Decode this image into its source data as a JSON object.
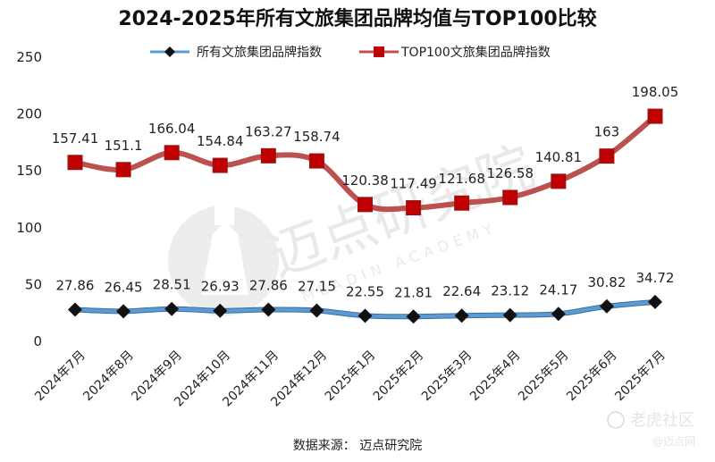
{
  "chart_data": {
    "type": "line",
    "title": "2024-2025年所有文旅集团品牌均值与TOP100比较",
    "categories": [
      "2024年7月",
      "2024年8月",
      "2024年9月",
      "2024年10月",
      "2024年11月",
      "2024年12月",
      "2025年1月",
      "2025年2月",
      "2025年3月",
      "2025年4月",
      "2025年5月",
      "2025年6月",
      "2025年7月"
    ],
    "series": [
      {
        "name": "所有文旅集团品牌指数",
        "color": "#5b9bd5",
        "marker": "diamond",
        "values": [
          27.86,
          26.45,
          28.51,
          26.93,
          27.86,
          27.15,
          22.55,
          21.81,
          22.64,
          23.12,
          24.17,
          30.82,
          34.72
        ],
        "labels": [
          "27.86",
          "26.45",
          "28.51",
          "26.93",
          "27.86",
          "27.15",
          "22.55",
          "21.81",
          "22.64",
          "23.12",
          "24.17",
          "30.82",
          "34.72"
        ]
      },
      {
        "name": "TOP100文旅集团品牌指数",
        "color": "#c0504d",
        "marker": "square",
        "values": [
          157.41,
          151.1,
          166.04,
          154.84,
          163.27,
          158.74,
          120.38,
          117.49,
          121.68,
          126.58,
          140.81,
          163,
          198.05
        ],
        "labels": [
          "157.41",
          "151.1",
          "166.04",
          "154.84",
          "163.27",
          "158.74",
          "120.38",
          "117.49",
          "121.68",
          "126.58",
          "140.81",
          "163",
          "198.05"
        ]
      }
    ],
    "ylim": [
      0,
      250
    ],
    "yticks": [
      "0",
      "50",
      "100",
      "150",
      "200",
      "250"
    ],
    "legend_position": "top",
    "grid": false
  },
  "source_text": "数据来源： 迈点研究院",
  "watermark": {
    "brand_cn": "迈点研究院",
    "brand_en": "MEADIN ACADEMY",
    "corner_cn": "老虎社区",
    "corner_en": "@迈点网"
  }
}
